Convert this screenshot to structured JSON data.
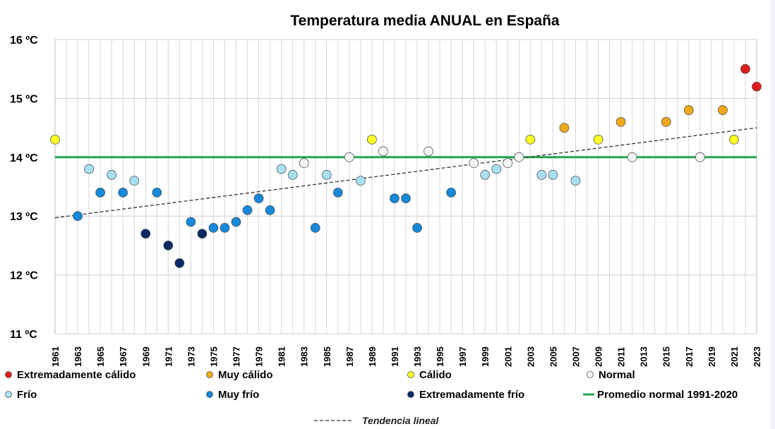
{
  "chart_data": {
    "type": "scatter",
    "title": "Temperatura media ANUAL en España",
    "ylim": [
      11,
      16
    ],
    "xlim": [
      1961,
      2023
    ],
    "yticks": [
      "11 ºC",
      "12 ºC",
      "13 ºC",
      "14 ºC",
      "15 ºC",
      "16 ºC"
    ],
    "xticks": [
      "1961",
      "1963",
      "1965",
      "1967",
      "1969",
      "1971",
      "1973",
      "1975",
      "1977",
      "1979",
      "1981",
      "1983",
      "1985",
      "1987",
      "1989",
      "1991",
      "1993",
      "1995",
      "1997",
      "1999",
      "2001",
      "2003",
      "2005",
      "2007",
      "2009",
      "2011",
      "2013",
      "2015",
      "2017",
      "2019",
      "2021",
      "2023"
    ],
    "grid": true,
    "normal_average": 14.0,
    "trend": {
      "start": [
        1961,
        12.97
      ],
      "end": [
        2023,
        14.5
      ]
    },
    "categories": {
      "ext_calido": {
        "label": "Extremadamente cálido",
        "color": "#e01b1b"
      },
      "muy_calido": {
        "label": "Muy cálido",
        "color": "#f0a91c"
      },
      "calido": {
        "label": "Cálido",
        "color": "#ffff22"
      },
      "normal": {
        "label": "Normal",
        "color": "#f4f4f4"
      },
      "frio": {
        "label": "Frío",
        "color": "#a9dff3"
      },
      "muy_frio": {
        "label": "Muy frío",
        "color": "#1689da"
      },
      "ext_frio": {
        "label": "Extremadamente frío",
        "color": "#0a2a63"
      }
    },
    "legend_promedio": "Promedio normal 1991-2020",
    "legend_trend": "Tendencia lineal",
    "points": [
      [
        1961,
        14.3,
        "calido"
      ],
      [
        1963,
        13.0,
        "muy_frio"
      ],
      [
        1964,
        13.8,
        "frio"
      ],
      [
        1965,
        13.4,
        "muy_frio"
      ],
      [
        1966,
        13.7,
        "frio"
      ],
      [
        1967,
        13.4,
        "muy_frio"
      ],
      [
        1968,
        13.6,
        "frio"
      ],
      [
        1969,
        12.7,
        "ext_frio"
      ],
      [
        1970,
        13.4,
        "muy_frio"
      ],
      [
        1971,
        12.5,
        "ext_frio"
      ],
      [
        1972,
        12.2,
        "ext_frio"
      ],
      [
        1973,
        12.9,
        "muy_frio"
      ],
      [
        1974,
        12.7,
        "ext_frio"
      ],
      [
        1975,
        12.8,
        "muy_frio"
      ],
      [
        1976,
        12.8,
        "muy_frio"
      ],
      [
        1977,
        12.9,
        "muy_frio"
      ],
      [
        1978,
        13.1,
        "muy_frio"
      ],
      [
        1979,
        13.3,
        "muy_frio"
      ],
      [
        1980,
        13.1,
        "muy_frio"
      ],
      [
        1981,
        13.8,
        "frio"
      ],
      [
        1982,
        13.7,
        "frio"
      ],
      [
        1983,
        13.9,
        "normal"
      ],
      [
        1984,
        12.8,
        "muy_frio"
      ],
      [
        1985,
        13.7,
        "frio"
      ],
      [
        1986,
        13.4,
        "muy_frio"
      ],
      [
        1987,
        14.0,
        "normal"
      ],
      [
        1988,
        13.6,
        "frio"
      ],
      [
        1989,
        14.3,
        "calido"
      ],
      [
        1990,
        14.1,
        "normal"
      ],
      [
        1991,
        13.3,
        "muy_frio"
      ],
      [
        1992,
        13.3,
        "muy_frio"
      ],
      [
        1993,
        12.8,
        "muy_frio"
      ],
      [
        1994,
        14.1,
        "normal"
      ],
      [
        1996,
        13.4,
        "muy_frio"
      ],
      [
        1998,
        13.9,
        "normal"
      ],
      [
        1999,
        13.7,
        "frio"
      ],
      [
        2000,
        13.8,
        "frio"
      ],
      [
        2001,
        13.9,
        "normal"
      ],
      [
        2002,
        14.0,
        "normal"
      ],
      [
        2003,
        14.3,
        "calido"
      ],
      [
        2004,
        13.7,
        "frio"
      ],
      [
        2005,
        13.7,
        "frio"
      ],
      [
        2006,
        14.5,
        "muy_calido"
      ],
      [
        2007,
        13.6,
        "frio"
      ],
      [
        2009,
        14.3,
        "calido"
      ],
      [
        2011,
        14.6,
        "muy_calido"
      ],
      [
        2012,
        14.0,
        "normal"
      ],
      [
        2015,
        14.6,
        "muy_calido"
      ],
      [
        2017,
        14.8,
        "muy_calido"
      ],
      [
        2018,
        14.0,
        "normal"
      ],
      [
        2020,
        14.8,
        "muy_calido"
      ],
      [
        2021,
        14.3,
        "calido"
      ],
      [
        2022,
        15.5,
        "ext_calido"
      ],
      [
        2023,
        15.2,
        "ext_calido"
      ]
    ]
  }
}
